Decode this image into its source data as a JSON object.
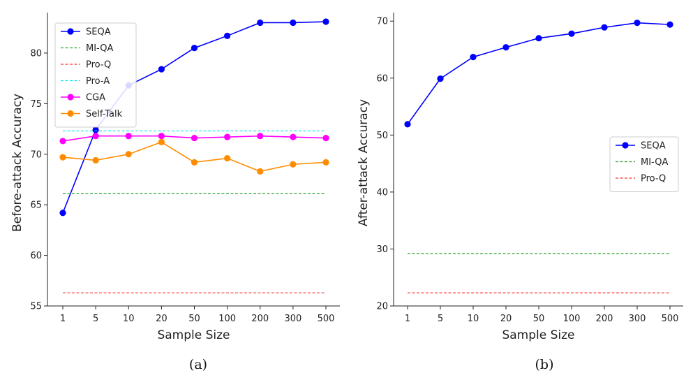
{
  "chart_data": [
    {
      "type": "line",
      "id": "a",
      "caption": "(a)",
      "xlabel": "Sample Size",
      "ylabel": "Before-attack Accuracy",
      "categories": [
        "1",
        "5",
        "10",
        "20",
        "50",
        "100",
        "200",
        "300",
        "500"
      ],
      "ylim": [
        55,
        84
      ],
      "yticks": [
        55,
        60,
        65,
        70,
        75,
        80
      ],
      "legend_position": "top-left",
      "series": [
        {
          "name": "SEQA",
          "color": "#0000ff",
          "style": "solid",
          "marker": "circle",
          "values": [
            64.2,
            72.4,
            76.8,
            78.4,
            80.5,
            81.7,
            83.0,
            83.0,
            83.1
          ]
        },
        {
          "name": "MI-QA",
          "color": "#2ca02c",
          "style": "dashed",
          "marker": "none",
          "values": [
            66.1,
            66.1,
            66.1,
            66.1,
            66.1,
            66.1,
            66.1,
            66.1,
            66.1
          ]
        },
        {
          "name": "Pro-Q",
          "color": "#ff3333",
          "style": "dashed",
          "marker": "none",
          "values": [
            56.3,
            56.3,
            56.3,
            56.3,
            56.3,
            56.3,
            56.3,
            56.3,
            56.3
          ]
        },
        {
          "name": "Pro-A",
          "color": "#00e5e5",
          "style": "dashed",
          "marker": "none",
          "values": [
            72.3,
            72.3,
            72.3,
            72.3,
            72.3,
            72.3,
            72.3,
            72.3,
            72.3
          ]
        },
        {
          "name": "CGA",
          "color": "#ff00ff",
          "style": "solid",
          "marker": "circle",
          "values": [
            71.3,
            71.8,
            71.8,
            71.8,
            71.6,
            71.7,
            71.8,
            71.7,
            71.6
          ]
        },
        {
          "name": "Self-Talk",
          "color": "#ff8c00",
          "style": "solid",
          "marker": "circle",
          "values": [
            69.7,
            69.4,
            70.0,
            71.2,
            69.2,
            69.6,
            68.3,
            69.0,
            69.2
          ]
        }
      ]
    },
    {
      "type": "line",
      "id": "b",
      "caption": "(b)",
      "xlabel": "Sample Size",
      "ylabel": "After-attack Accuracy",
      "categories": [
        "1",
        "5",
        "10",
        "20",
        "50",
        "100",
        "200",
        "300",
        "500"
      ],
      "ylim": [
        20,
        71.5
      ],
      "yticks": [
        20,
        30,
        40,
        50,
        60,
        70
      ],
      "legend_position": "center-right",
      "series": [
        {
          "name": "SEQA",
          "color": "#0000ff",
          "style": "solid",
          "marker": "circle",
          "values": [
            51.9,
            59.9,
            63.7,
            65.4,
            67.0,
            67.8,
            68.9,
            69.7,
            69.4
          ]
        },
        {
          "name": "MI-QA",
          "color": "#2ca02c",
          "style": "dashed",
          "marker": "none",
          "values": [
            29.2,
            29.2,
            29.2,
            29.2,
            29.2,
            29.2,
            29.2,
            29.2,
            29.2
          ]
        },
        {
          "name": "Pro-Q",
          "color": "#ff3333",
          "style": "dashed",
          "marker": "none",
          "values": [
            22.3,
            22.3,
            22.3,
            22.3,
            22.3,
            22.3,
            22.3,
            22.3,
            22.3
          ]
        }
      ]
    }
  ]
}
